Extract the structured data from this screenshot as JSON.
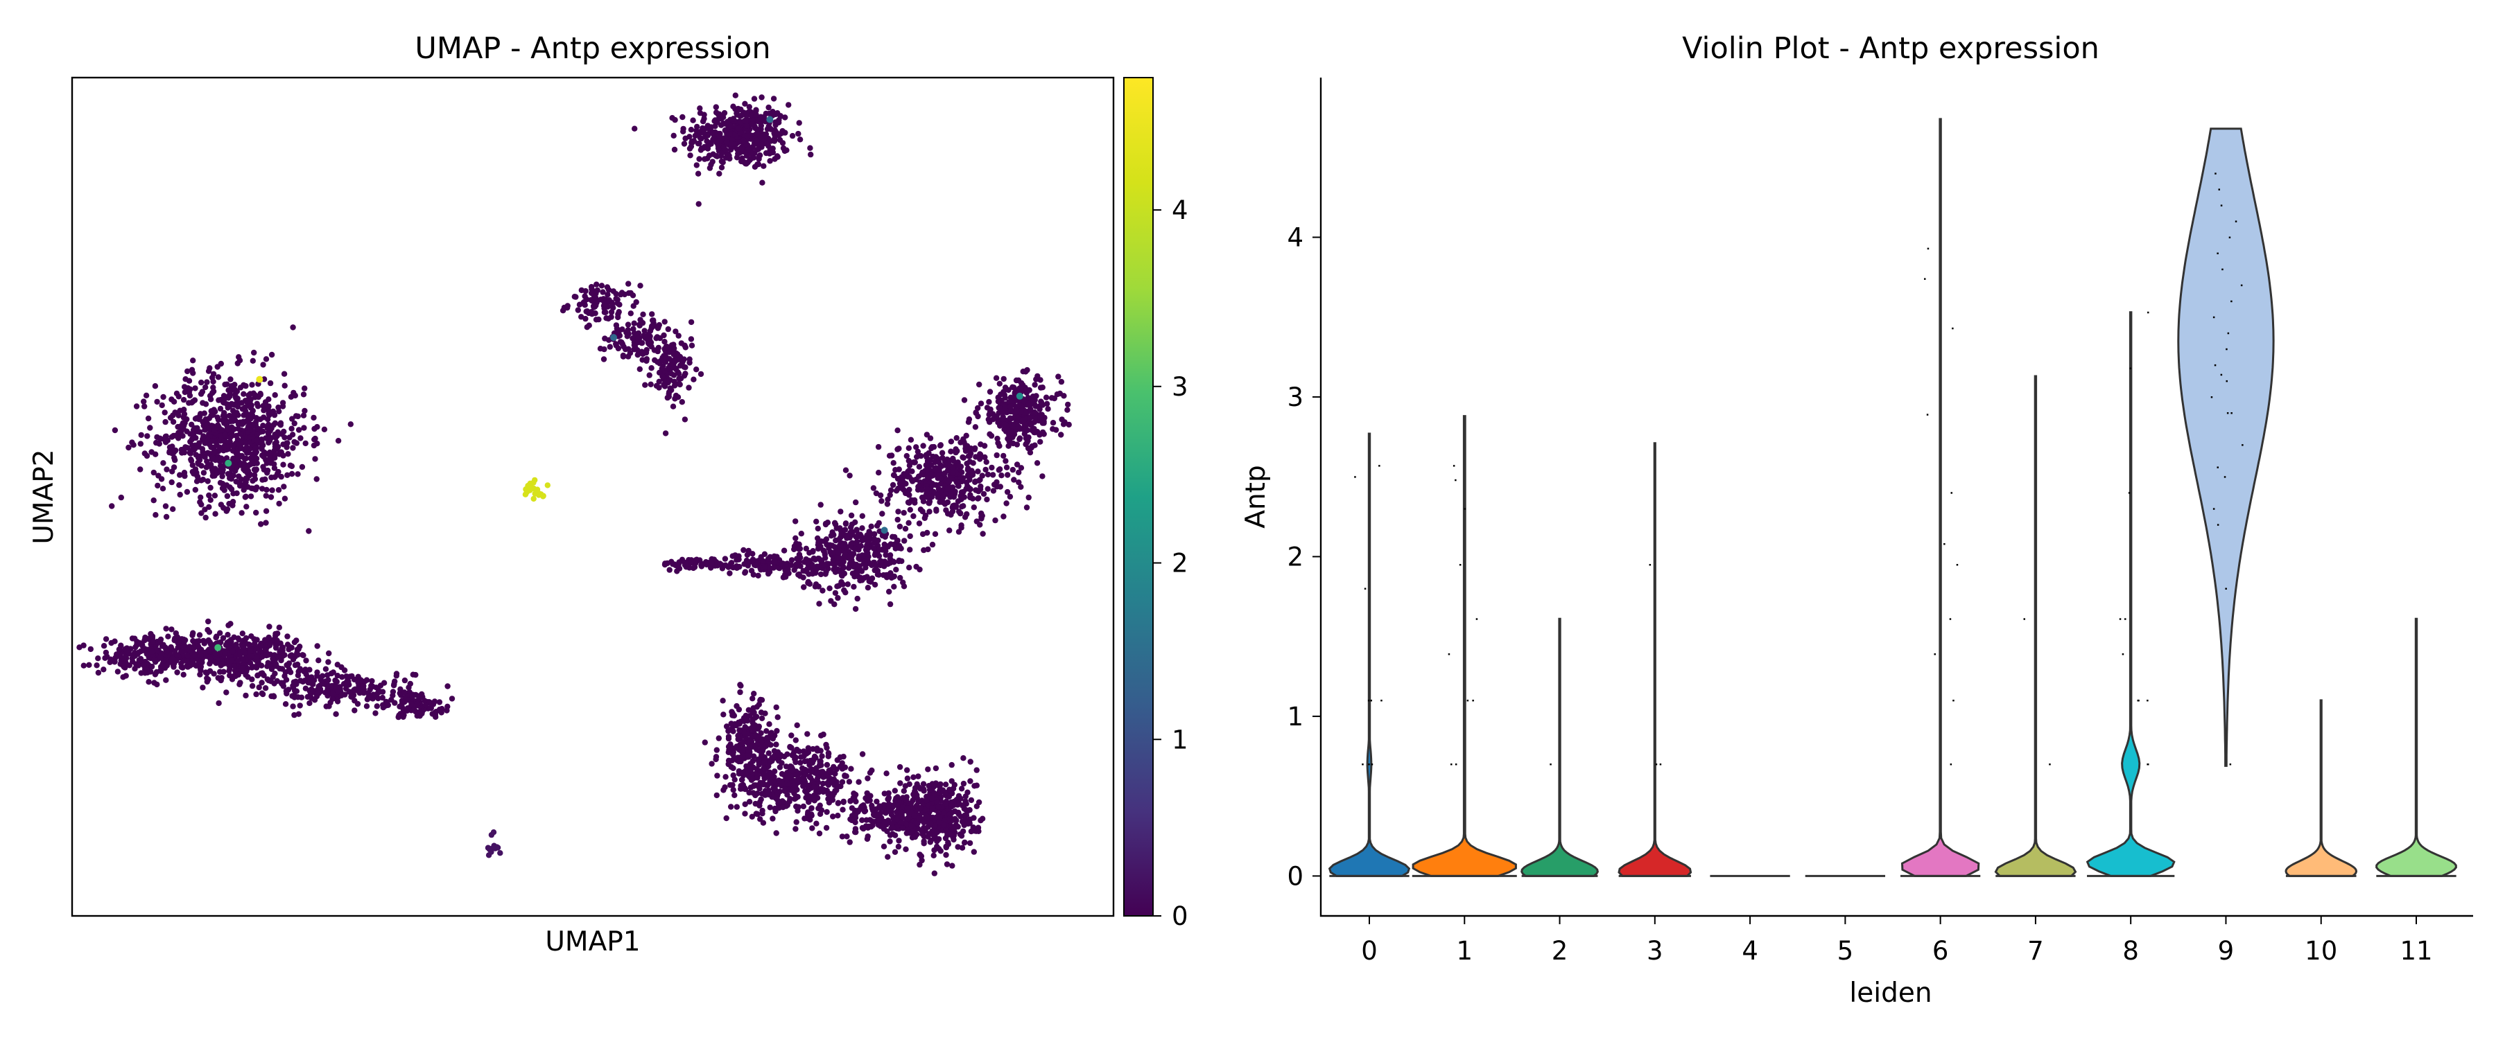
{
  "chart_data": [
    {
      "type": "scatter",
      "title": "UMAP - Antp expression",
      "xlabel": "UMAP1",
      "ylabel": "UMAP2",
      "colorbar": {
        "colormap": "viridis",
        "range": [
          0,
          4.75
        ],
        "ticks": [
          "0",
          "1",
          "2",
          "3",
          "4"
        ]
      },
      "clusters": [
        {
          "description": "top-center blob",
          "color_value": 0,
          "high_points": [
            {
              "x": 0.67,
              "y": 0.95,
              "value": 1.5
            }
          ]
        },
        {
          "description": "upper arc",
          "color_value": 0,
          "high_points": [
            {
              "x": 0.52,
              "y": 0.69,
              "value": 1.4
            }
          ]
        },
        {
          "description": "left round blob",
          "color_value": 0,
          "high_points": [
            {
              "x": 0.18,
              "y": 0.64,
              "value": 4.5
            },
            {
              "x": 0.15,
              "y": 0.54,
              "value": 2.6
            }
          ]
        },
        {
          "description": "small isolated streak",
          "color_value": 4.2,
          "high_points": []
        },
        {
          "description": "right elongated cluster",
          "color_value": 0,
          "high_points": [
            {
              "x": 0.91,
              "y": 0.62,
              "value": 2.0
            },
            {
              "x": 0.78,
              "y": 0.46,
              "value": 1.5
            }
          ]
        },
        {
          "description": "lower-left elongated cluster",
          "color_value": 0,
          "high_points": [
            {
              "x": 0.14,
              "y": 0.32,
              "value": 2.8
            }
          ]
        },
        {
          "description": "bottom cluster",
          "color_value": 0,
          "high_points": []
        },
        {
          "description": "tiny bottom fragment",
          "color_value": 0.2,
          "high_points": []
        }
      ]
    },
    {
      "type": "violin",
      "title": "Violin Plot - Antp expression",
      "xlabel": "leiden",
      "ylabel": "Antp",
      "ylim": [
        -0.25,
        5.0
      ],
      "yticks": [
        0,
        1,
        2,
        3,
        4
      ],
      "categories": [
        "0",
        "1",
        "2",
        "3",
        "4",
        "5",
        "6",
        "7",
        "8",
        "9",
        "10",
        "11"
      ],
      "colors": [
        "#1f77b4",
        "#ff7f0e",
        "#279e68",
        "#d62728",
        "#aa40fc",
        "#8c564b",
        "#e377c2",
        "#b5bd61",
        "#17becf",
        "#aec7e8",
        "#ffbb78",
        "#98df8a"
      ],
      "series": [
        {
          "category": "0",
          "max": 2.77,
          "half_width": 0.42,
          "peak_at": 0.04,
          "bulge": [
            {
              "at": 0.7,
              "w": 0.05
            }
          ],
          "points": [
            0.7,
            0.7,
            0.7,
            1.1,
            1.1,
            1.1,
            1.8,
            2.5,
            2.57
          ]
        },
        {
          "category": "1",
          "max": 2.88,
          "half_width": 0.55,
          "peak_at": 0.06,
          "bulge": [],
          "points": [
            0.7,
            0.7,
            1.1,
            1.1,
            1.39,
            1.61,
            1.95,
            2.3,
            2.48,
            2.57
          ]
        },
        {
          "category": "2",
          "max": 1.61,
          "half_width": 0.4,
          "peak_at": 0.03,
          "bulge": [],
          "points": [
            0.7
          ]
        },
        {
          "category": "3",
          "max": 2.71,
          "half_width": 0.38,
          "peak_at": 0.03,
          "bulge": [],
          "points": [
            0.7,
            0.7,
            1.95
          ]
        },
        {
          "category": "4",
          "max": 0.0,
          "half_width": 0.42,
          "peak_at": 0.0,
          "bulge": [],
          "points": []
        },
        {
          "category": "5",
          "max": 0.0,
          "half_width": 0.42,
          "peak_at": 0.0,
          "bulge": [],
          "points": []
        },
        {
          "category": "6",
          "max": 4.74,
          "half_width": 0.42,
          "peak_at": 0.06,
          "bulge": [],
          "points": [
            0.7,
            1.1,
            1.39,
            1.61,
            1.95,
            2.08,
            2.4,
            2.89,
            3.43,
            3.74,
            3.93
          ]
        },
        {
          "category": "7",
          "max": 3.13,
          "half_width": 0.42,
          "peak_at": 0.03,
          "bulge": [],
          "points": [
            0.7,
            1.61
          ]
        },
        {
          "category": "8",
          "max": 3.53,
          "half_width": 0.46,
          "peak_at": 0.08,
          "bulge": [
            {
              "at": 0.7,
              "w": 0.2
            }
          ],
          "points": [
            0.7,
            0.7,
            1.1,
            1.1,
            1.1,
            1.39,
            1.61,
            1.61,
            2.4,
            3.18,
            3.53
          ]
        },
        {
          "category": "9",
          "max": 4.68,
          "min": 0.69,
          "half_width": 0.5,
          "peak_at": 3.35,
          "bulge": [],
          "points": [
            0.7,
            1.8,
            2.2,
            2.3,
            2.5,
            2.56,
            2.7,
            2.9,
            2.9,
            3.0,
            3.1,
            3.14,
            3.2,
            3.3,
            3.4,
            3.5,
            3.6,
            3.7,
            3.8,
            3.9,
            4.0,
            4.1,
            4.2,
            4.3,
            4.4
          ]
        },
        {
          "category": "10",
          "max": 1.1,
          "half_width": 0.37,
          "peak_at": 0.03,
          "bulge": [],
          "points": []
        },
        {
          "category": "11",
          "max": 1.61,
          "half_width": 0.42,
          "peak_at": 0.06,
          "bulge": [],
          "points": []
        }
      ]
    }
  ]
}
